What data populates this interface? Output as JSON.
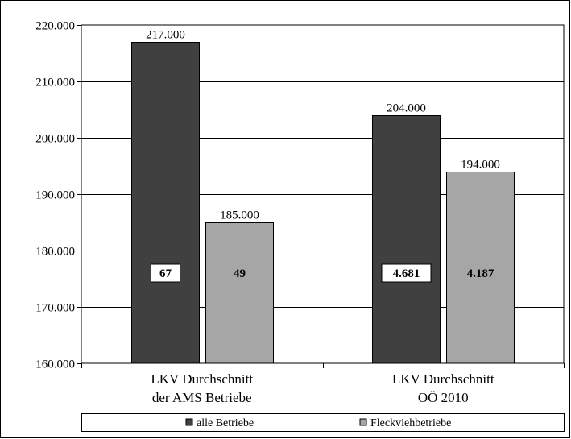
{
  "chart_data": {
    "type": "bar",
    "categories": [
      [
        "LKV Durchschnitt",
        "der AMS Betriebe"
      ],
      [
        "LKV Durchschnitt",
        "OÖ 2010"
      ]
    ],
    "series": [
      {
        "name": "alle Betriebe",
        "color": "#404040",
        "values": [
          217000,
          204000
        ],
        "value_labels": [
          "217.000",
          "204.000"
        ],
        "count_labels": [
          "67",
          "4.681"
        ]
      },
      {
        "name": "Fleckviehbetriebe",
        "color": "#a6a6a6",
        "values": [
          185000,
          194000
        ],
        "value_labels": [
          "185.000",
          "194.000"
        ],
        "count_labels": [
          "49",
          "4.187"
        ]
      }
    ],
    "ylim": [
      160000,
      220000
    ],
    "yticks": [
      160000,
      170000,
      180000,
      190000,
      200000,
      210000,
      220000
    ],
    "ytick_labels": [
      "160.000",
      "170.000",
      "180.000",
      "190.000",
      "200.000",
      "210.000",
      "220.000"
    ],
    "grid": true,
    "legend_position": "bottom"
  }
}
